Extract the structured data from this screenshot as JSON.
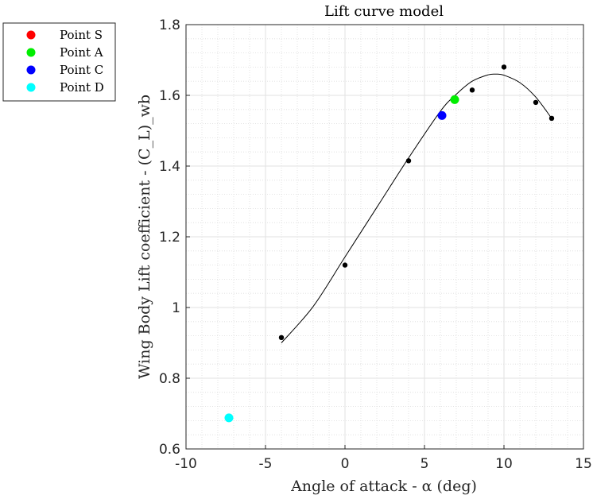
{
  "chart_data": {
    "type": "scatter",
    "title": "Lift curve model",
    "xlabel": "Angle of attack - α (deg)",
    "ylabel": "Wing Body Lift coefficient - (C_L)_wb",
    "xlim": [
      -10,
      15
    ],
    "ylim": [
      0.6,
      1.8
    ],
    "xticks": [
      -10,
      -5,
      0,
      5,
      10,
      15
    ],
    "xtick_labels": [
      "-10",
      "-5",
      "0",
      "5",
      "10",
      "15"
    ],
    "yticks": [
      0.6,
      0.8,
      1.0,
      1.2,
      1.4,
      1.6,
      1.8
    ],
    "ytick_labels": [
      "0.6",
      "0.8",
      "1",
      "1.2",
      "1.4",
      "1.6",
      "1.8"
    ],
    "grid": true,
    "minor_grid": true,
    "legend_position": "outside-top-left",
    "data_points": {
      "x": [
        -4,
        0,
        4,
        8,
        10,
        12,
        13
      ],
      "y": [
        0.915,
        1.12,
        1.415,
        1.615,
        1.68,
        1.58,
        1.535
      ],
      "color": "#000000"
    },
    "model_curve": {
      "x": [
        -4,
        -2,
        0,
        2,
        4,
        6,
        7,
        8,
        9,
        9.5,
        10,
        11,
        12,
        13
      ],
      "y": [
        0.9,
        1.003,
        1.143,
        1.283,
        1.423,
        1.555,
        1.603,
        1.64,
        1.658,
        1.66,
        1.657,
        1.636,
        1.595,
        1.535
      ],
      "color": "#000000"
    },
    "series": [
      {
        "name": "Point S",
        "color": "#ff0000",
        "x": [],
        "y": []
      },
      {
        "name": "Point A",
        "color": "#00ee00",
        "x": [
          6.9
        ],
        "y": [
          1.588
        ]
      },
      {
        "name": "Point C",
        "color": "#0000ff",
        "x": [
          6.1
        ],
        "y": [
          1.543
        ]
      },
      {
        "name": "Point D",
        "color": "#00ffff",
        "x": [
          -7.3
        ],
        "y": [
          0.688
        ]
      }
    ]
  }
}
